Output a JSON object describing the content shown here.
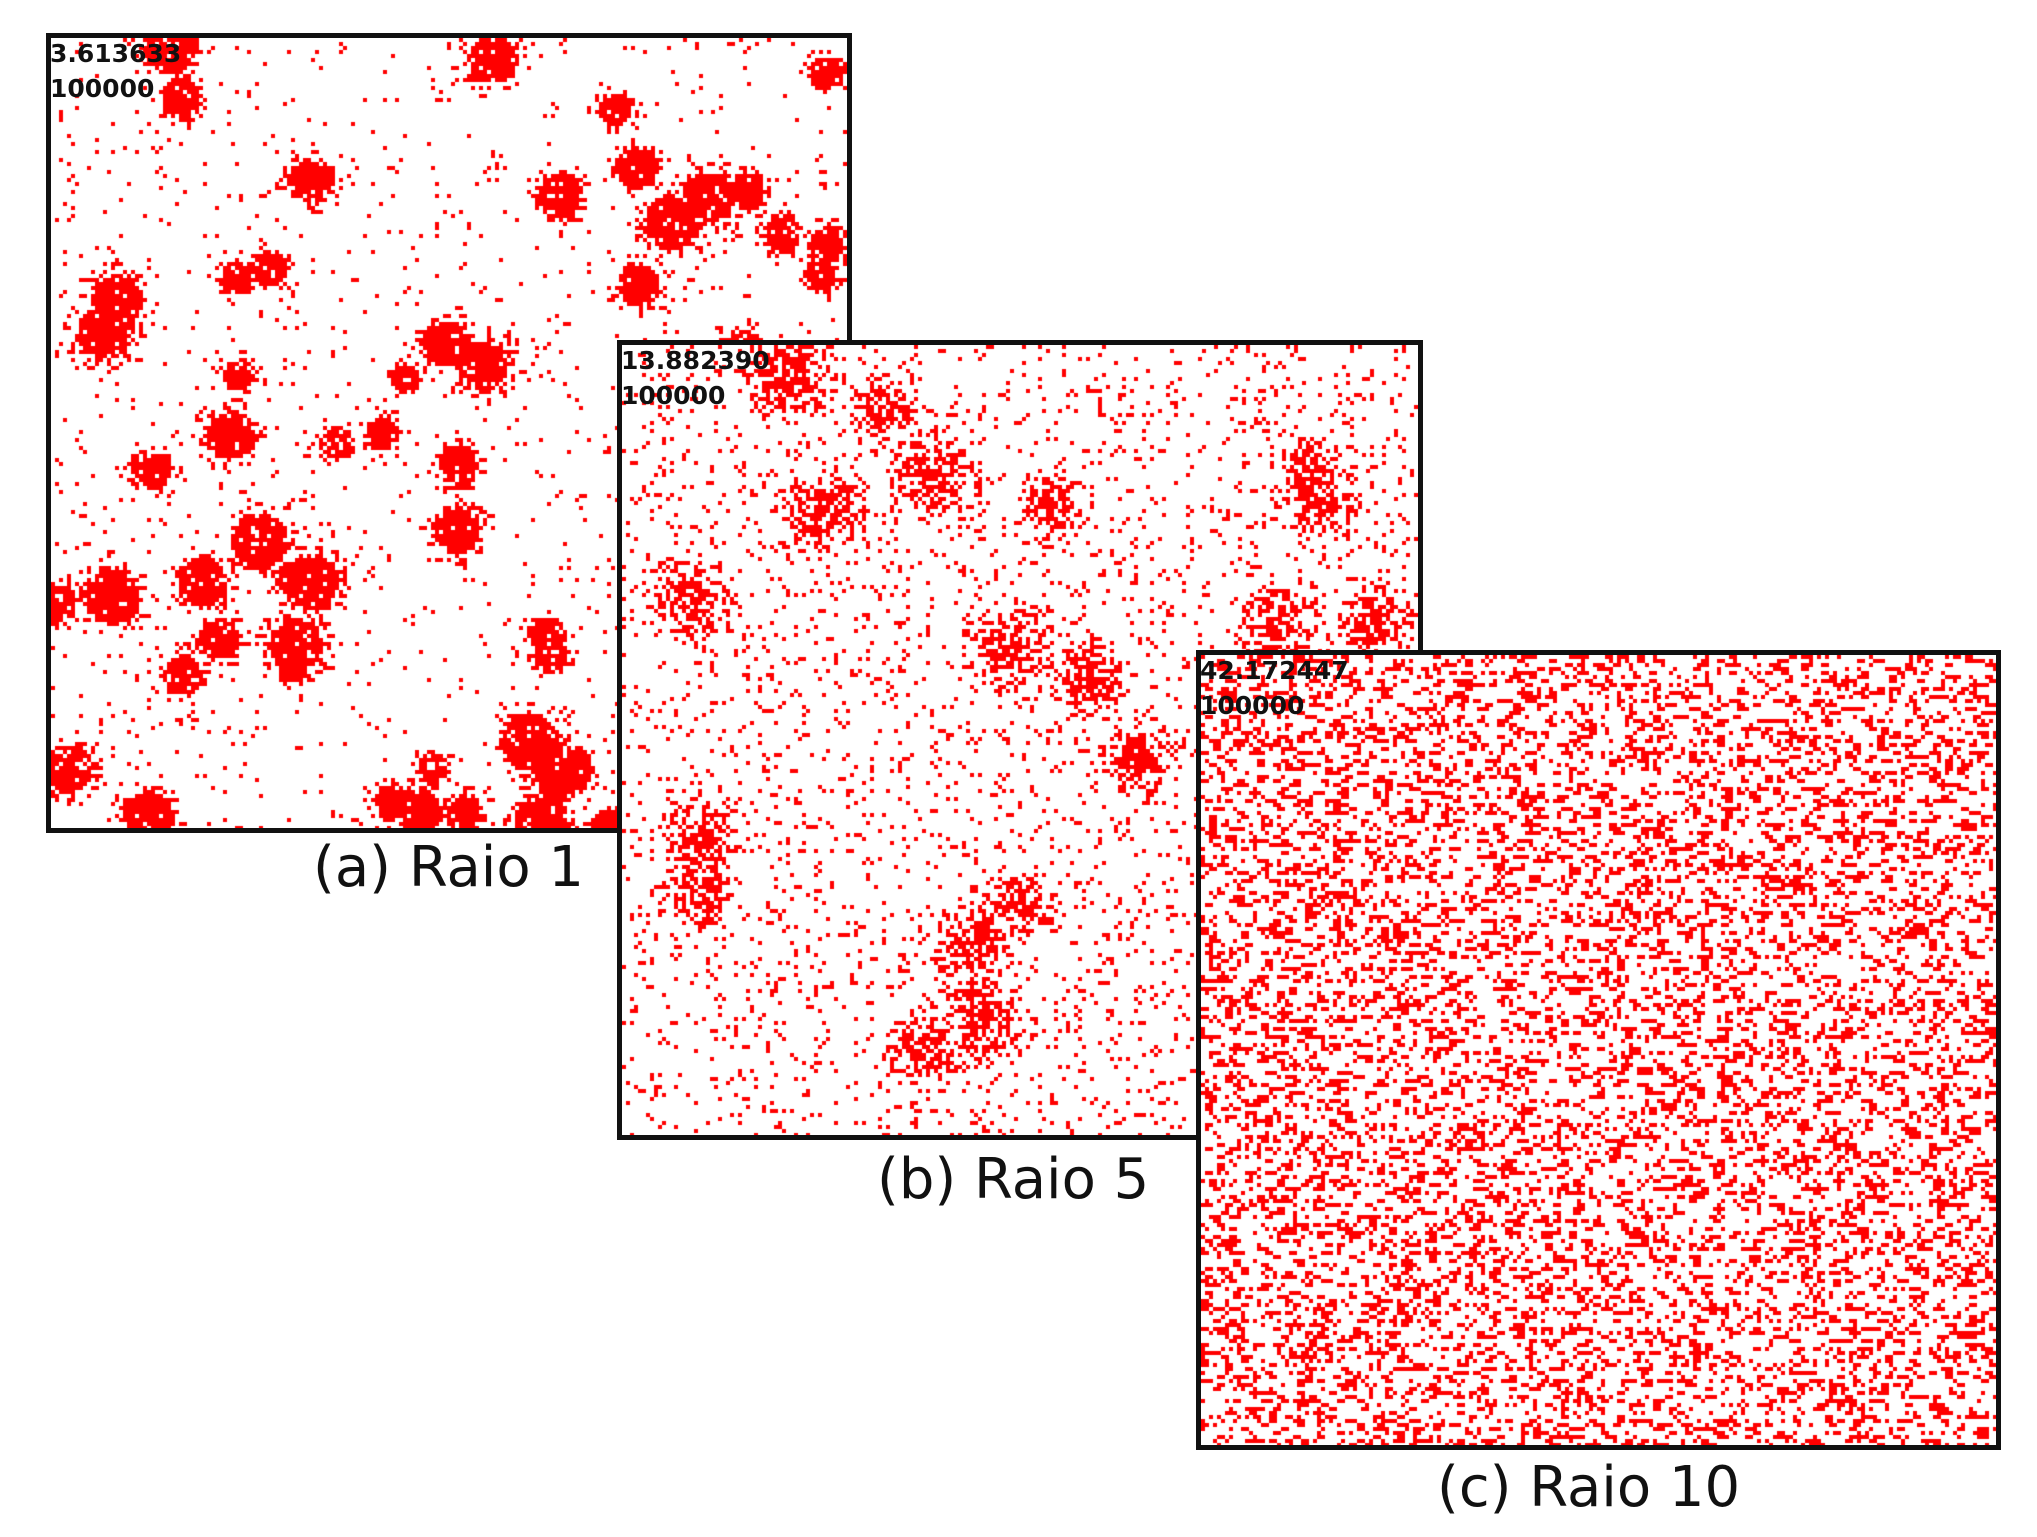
{
  "panels": [
    {
      "id": "a",
      "readout_line1": "3.613633",
      "readout_line2": "100000",
      "caption": "(a) Raio 1",
      "pattern": "large-clusters",
      "cell_color": "#ff0000"
    },
    {
      "id": "b",
      "readout_line1": "13.882390",
      "readout_line2": "100000",
      "caption": "(b) Raio 5",
      "pattern": "diffuse-clusters",
      "cell_color": "#ff0000"
    },
    {
      "id": "c",
      "readout_line1": "42.172447",
      "readout_line2": "100000",
      "caption": "(c) Raio 10",
      "pattern": "random-noise",
      "cell_color": "#ff0000"
    }
  ]
}
